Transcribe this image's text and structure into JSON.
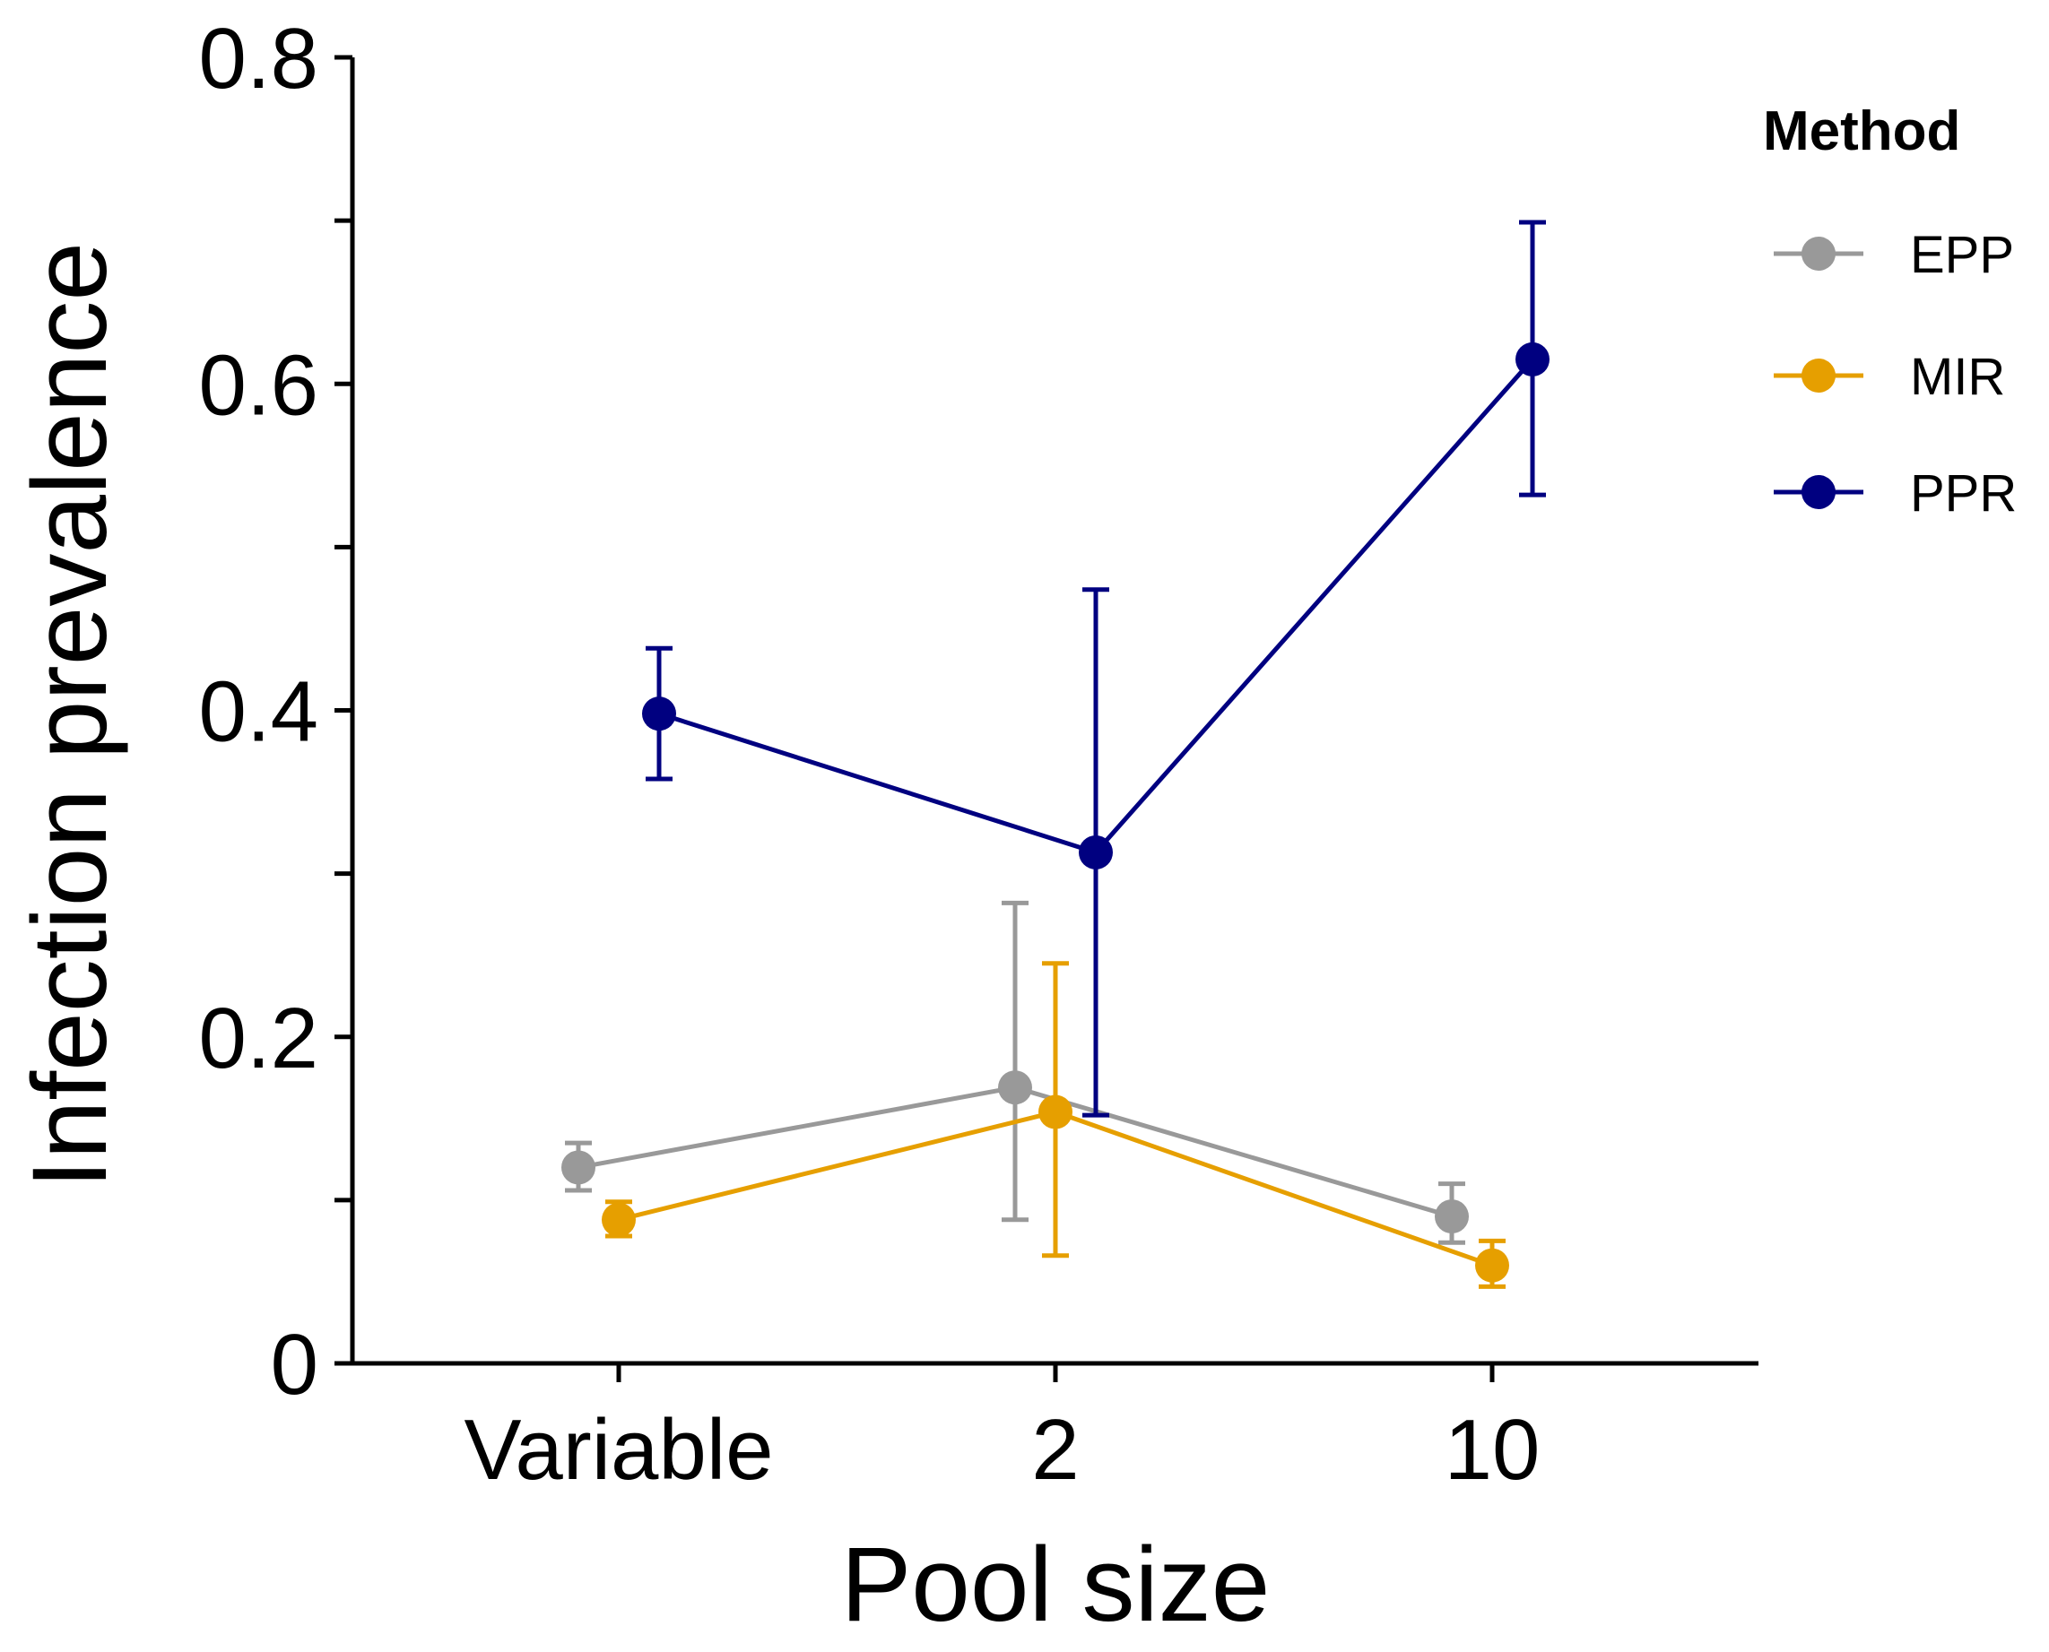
{
  "chart_data": {
    "type": "line",
    "xlabel": "Pool size",
    "ylabel": "Infection prevalence",
    "categories": [
      "Variable",
      "2",
      "10"
    ],
    "ylim": [
      0,
      0.8
    ],
    "yticks": [
      0,
      0.1,
      0.2,
      0.3,
      0.4,
      0.5,
      0.6,
      0.7,
      0.8
    ],
    "ytick_labels": [
      "0",
      "",
      "0.2",
      "",
      "0.4",
      "",
      "0.6",
      "",
      "0.8"
    ],
    "grid": false,
    "error_bars": true,
    "legend": {
      "title": "Method",
      "position": "right"
    },
    "series": [
      {
        "name": "EPP",
        "color": "#999999",
        "dodge": -1,
        "values": [
          0.12,
          0.169,
          0.09
        ],
        "lower": [
          0.106,
          0.088,
          0.074
        ],
        "upper": [
          0.135,
          0.282,
          0.11
        ]
      },
      {
        "name": "MIR",
        "color": "#E69F00",
        "dodge": 0,
        "values": [
          0.088,
          0.154,
          0.06
        ],
        "lower": [
          0.078,
          0.066,
          0.047
        ],
        "upper": [
          0.099,
          0.245,
          0.075
        ]
      },
      {
        "name": "PPR",
        "color": "#000080",
        "dodge": 1,
        "values": [
          0.398,
          0.313,
          0.615
        ],
        "lower": [
          0.358,
          0.152,
          0.532
        ],
        "upper": [
          0.438,
          0.474,
          0.699
        ]
      }
    ]
  }
}
